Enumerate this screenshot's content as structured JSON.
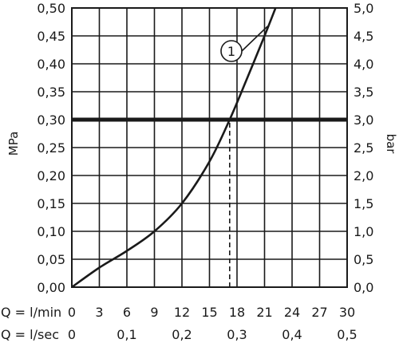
{
  "chart_data": {
    "type": "line",
    "title": "",
    "y_left_label": "MPa",
    "y_right_label": "bar",
    "x_axes": [
      {
        "label": "Q = l/min",
        "range": [
          0,
          30
        ],
        "ticks": [
          0,
          3,
          6,
          9,
          12,
          15,
          18,
          21,
          24,
          27,
          30
        ],
        "tick_labels": [
          "0",
          "3",
          "6",
          "9",
          "12",
          "15",
          "18",
          "21",
          "24",
          "27",
          "30"
        ]
      },
      {
        "label": "Q = l/sec",
        "range": [
          0,
          0.5
        ],
        "ticks": [
          0,
          0.1,
          0.2,
          0.3,
          0.4,
          0.5
        ],
        "tick_labels": [
          "0",
          "0,1",
          "0,2",
          "0,3",
          "0,4",
          "0,5"
        ]
      }
    ],
    "y_left": {
      "unit": "MPa",
      "range": [
        0,
        0.5
      ],
      "ticks": [
        0,
        0.05,
        0.1,
        0.15,
        0.2,
        0.25,
        0.3,
        0.35,
        0.4,
        0.45,
        0.5
      ],
      "tick_labels": [
        "0,00",
        "0,05",
        "0,10",
        "0,15",
        "0,20",
        "0,25",
        "0,30",
        "0,35",
        "0,40",
        "0,45",
        "0,50"
      ]
    },
    "y_right": {
      "unit": "bar",
      "range": [
        0,
        5
      ],
      "ticks": [
        0,
        0.5,
        1,
        1.5,
        2,
        2.5,
        3,
        3.5,
        4,
        4.5,
        5
      ],
      "tick_labels": [
        "0,0",
        "0,5",
        "1,0",
        "1,5",
        "2,0",
        "2,5",
        "3,0",
        "3,5",
        "4,0",
        "4,5",
        "5,0"
      ]
    },
    "grid": true,
    "series": [
      {
        "label": "1",
        "x_unit": "l/min",
        "y_unit": "MPa",
        "points": [
          {
            "x": 0,
            "y": 0
          },
          {
            "x": 3,
            "y": 0.035
          },
          {
            "x": 6,
            "y": 0.065
          },
          {
            "x": 9,
            "y": 0.1
          },
          {
            "x": 12,
            "y": 0.15
          },
          {
            "x": 15,
            "y": 0.225
          },
          {
            "x": 17.2,
            "y": 0.3
          },
          {
            "x": 19,
            "y": 0.37
          },
          {
            "x": 21,
            "y": 0.45
          },
          {
            "x": 22.2,
            "y": 0.5
          }
        ]
      }
    ],
    "reference_lines": [
      {
        "orientation": "horizontal",
        "y": 0.3,
        "style": "solid-thick"
      },
      {
        "orientation": "vertical",
        "x": 17.2,
        "y_from": 0,
        "y_to": 0.3,
        "style": "dashed"
      }
    ]
  }
}
